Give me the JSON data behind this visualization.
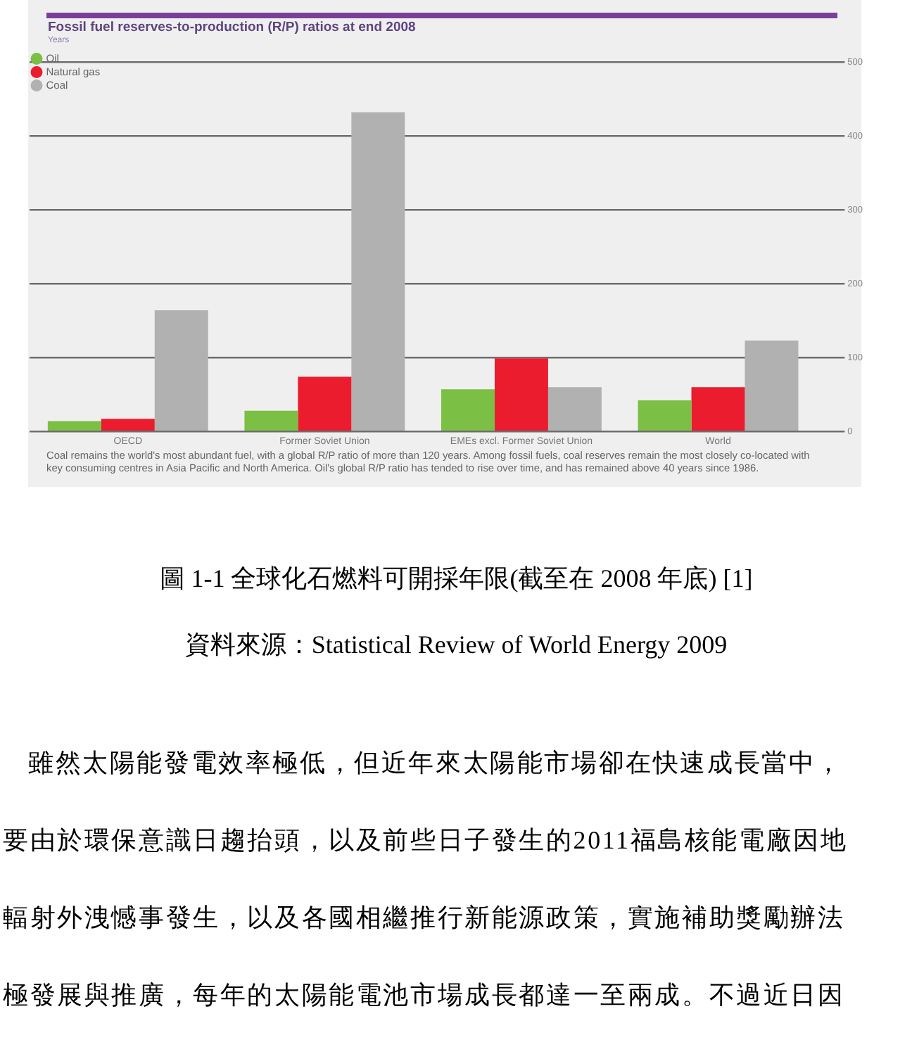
{
  "chart_data": {
    "type": "bar",
    "title": "Fossil fuel reserves-to-production (R/P) ratios at end 2008",
    "ylabel": "Years",
    "categories": [
      "OECD",
      "Former Soviet Union",
      "EMEs excl. Former Soviet Union",
      "World"
    ],
    "series": [
      {
        "name": "Oil",
        "color": "#7bbf44",
        "values": [
          14,
          28,
          57,
          42
        ]
      },
      {
        "name": "Natural gas",
        "color": "#ea1c2d",
        "values": [
          17,
          74,
          99,
          60
        ]
      },
      {
        "name": "Coal",
        "color": "#b1b1b1",
        "values": [
          164,
          432,
          60,
          123
        ]
      }
    ],
    "ylim": [
      0,
      500
    ],
    "yticks": [
      0,
      100,
      200,
      300,
      400,
      500
    ],
    "grid": "y",
    "legend": "top left",
    "annotations": [
      "Coal remains the world's most abundant fuel, with a global R/P ratio of more than 120 years. Among fossil fuels, coal reserves remain the most closely co-located with key consuming centres in Asia Pacific and North America. Oil's global R/P ratio has tended to rise over time, and has remained above 40 years since 1986.",
      "圖 1-1 全球化石燃料可開採年限(截至在 2008 年底) [1]",
      "資料來源：Statistical Review of World Energy 2009",
      "雖然太陽能發電效率極低，但近年來太陽能市場卻在快速成長當中，",
      "要由於環保意識日趨抬頭，以及前些日子發生的2011福島核能電廠因地",
      "輻射外洩憾事發生，以及各國相繼推行新能源政策，實施補助獎勵辦法",
      "極發展與推廣，每年的太陽能電池市場成長都達一至兩成。不過近日因"
    ]
  }
}
